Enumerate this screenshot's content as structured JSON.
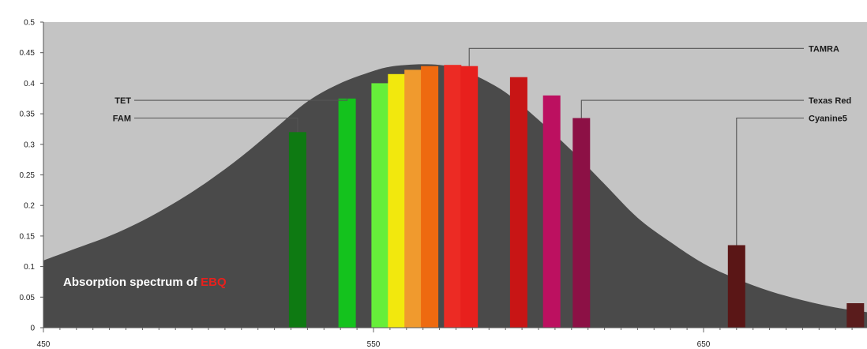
{
  "chart_data": {
    "type": "area",
    "title": "",
    "xlabel": "",
    "ylabel": "",
    "xlim": [
      450,
      700
    ],
    "ylim": [
      0,
      0.5
    ],
    "x_ticks": [
      450,
      550,
      650
    ],
    "y_ticks": [
      0,
      0.05,
      0.1,
      0.15,
      0.2,
      0.25,
      0.3,
      0.35,
      0.4,
      0.45,
      0.5
    ],
    "grid": false,
    "colors": {
      "plot_background": "#c4c4c4",
      "curve_fill": "#4a4a4a",
      "highlight": "#e8201d"
    },
    "absorption_curve": {
      "x": [
        450,
        460,
        470,
        480,
        490,
        500,
        510,
        520,
        530,
        540,
        550,
        555,
        560,
        565,
        570,
        575,
        580,
        590,
        600,
        610,
        620,
        630,
        640,
        650,
        660,
        670,
        680,
        690,
        700
      ],
      "y": [
        0.11,
        0.13,
        0.15,
        0.175,
        0.205,
        0.24,
        0.28,
        0.325,
        0.37,
        0.4,
        0.42,
        0.427,
        0.43,
        0.431,
        0.43,
        0.425,
        0.415,
        0.385,
        0.34,
        0.29,
        0.235,
        0.18,
        0.14,
        0.105,
        0.08,
        0.06,
        0.045,
        0.033,
        0.025
      ]
    },
    "bars": [
      {
        "x": 527,
        "y": 0.32,
        "color": "#0e7a12"
      },
      {
        "x": 542,
        "y": 0.375,
        "color": "#14c21d"
      },
      {
        "x": 552,
        "y": 0.4,
        "color": "#66ee3a"
      },
      {
        "x": 557,
        "y": 0.415,
        "color": "#f2e80d"
      },
      {
        "x": 562,
        "y": 0.422,
        "color": "#f09a2e"
      },
      {
        "x": 567,
        "y": 0.428,
        "color": "#ee6a10"
      },
      {
        "x": 574,
        "y": 0.43,
        "color": "#ec2b24"
      },
      {
        "x": 579,
        "y": 0.428,
        "color": "#e8201d"
      },
      {
        "x": 594,
        "y": 0.41,
        "color": "#c81515"
      },
      {
        "x": 604,
        "y": 0.38,
        "color": "#bc1060"
      },
      {
        "x": 613,
        "y": 0.343,
        "color": "#8c1045"
      },
      {
        "x": 660,
        "y": 0.135,
        "color": "#5a1616"
      },
      {
        "x": 696,
        "y": 0.04,
        "color": "#5a1c1c"
      }
    ],
    "callouts": [
      {
        "label": "TET",
        "bar_index": 1,
        "side": "left",
        "y": 0.372
      },
      {
        "label": "FAM",
        "bar_index": 0,
        "side": "left",
        "y": 0.343
      },
      {
        "label": "TAMRA",
        "bar_index": 7,
        "side": "right",
        "y": 0.457
      },
      {
        "label": "Texas Red",
        "bar_index": 10,
        "side": "right",
        "y": 0.372
      },
      {
        "label": "Cyanine5",
        "bar_index": 11,
        "side": "right",
        "y": 0.343
      }
    ],
    "annotation": {
      "prefix": "Absorption spectrum of ",
      "highlight": "EBQ"
    }
  }
}
